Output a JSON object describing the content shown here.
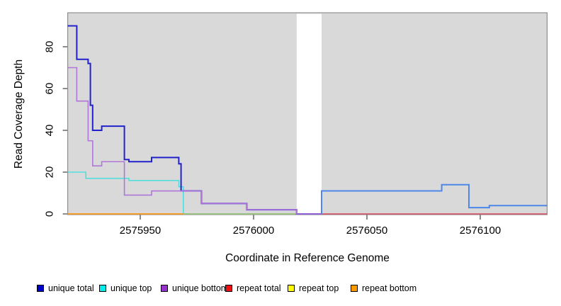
{
  "chart_data": {
    "type": "line",
    "title": "",
    "xlabel": "Coordinate in Reference Genome",
    "ylabel": "Read Coverage Depth",
    "xlim": [
      2575918,
      2576129.5
    ],
    "ylim": [
      0,
      96
    ],
    "x_ticks": [
      2575950,
      2576000,
      2576050,
      2576100
    ],
    "y_ticks": [
      0,
      20,
      40,
      60,
      80
    ],
    "grid": false,
    "panel_background": "#d9d9d9",
    "panel_border": "#8f8f8f",
    "gap_region": {
      "x_start": 2576019,
      "x_end": 2576030,
      "color": "#ffffff"
    },
    "series": [
      {
        "name": "repeat total (left of gap)",
        "legend": "repeat total",
        "color": "#dd4a63",
        "width": 1.4,
        "steps": [
          [
            2575918,
            0
          ],
          [
            2576019,
            0
          ]
        ]
      },
      {
        "name": "repeat total (right of gap)",
        "legend": "repeat total",
        "color": "#dd4a63",
        "width": 1.4,
        "steps": [
          [
            2576030,
            0
          ],
          [
            2576129.5,
            0
          ]
        ]
      },
      {
        "name": "repeat top",
        "legend": "repeat top",
        "color": "#e8e860",
        "width": 1.4,
        "steps": [
          [
            2575918,
            0
          ],
          [
            2576019,
            0
          ]
        ]
      },
      {
        "name": "unique top",
        "legend": "unique top",
        "color": "#55dede",
        "width": 1.6,
        "steps": [
          [
            2575918,
            20
          ],
          [
            2575926,
            17
          ],
          [
            2575945,
            16
          ],
          [
            2575967,
            13
          ],
          [
            2575969,
            0
          ]
        ]
      },
      {
        "name": "unique top + repeat top overlap at zero",
        "legend": "",
        "color": "#85c785",
        "width": 1.4,
        "steps": [
          [
            2575969,
            0
          ],
          [
            2576019,
            0
          ]
        ]
      },
      {
        "name": "repeat bottom",
        "legend": "repeat bottom",
        "color": "#ff9211",
        "width": 1.5,
        "steps": [
          [
            2575918,
            0
          ],
          [
            2575969,
            0
          ]
        ]
      },
      {
        "name": "unique total (left of gap)",
        "legend": "unique total",
        "color": "#2222cc",
        "width": 2,
        "steps": [
          [
            2575918,
            90
          ],
          [
            2575922,
            74
          ],
          [
            2575927,
            72
          ],
          [
            2575928,
            52
          ],
          [
            2575929,
            40
          ],
          [
            2575933,
            42
          ],
          [
            2575943,
            26
          ],
          [
            2575945,
            25
          ],
          [
            2575955,
            27
          ],
          [
            2575967,
            24
          ],
          [
            2575968,
            11
          ],
          [
            2575977,
            5
          ],
          [
            2575997,
            2
          ],
          [
            2576019,
            0
          ],
          [
            2576030,
            0
          ]
        ]
      },
      {
        "name": "unique bottom",
        "legend": "unique bottom",
        "color": "#b176d9",
        "width": 1.6,
        "steps": [
          [
            2575918,
            70
          ],
          [
            2575922,
            54
          ],
          [
            2575927,
            35
          ],
          [
            2575929,
            23
          ],
          [
            2575933,
            25
          ],
          [
            2575943,
            9
          ],
          [
            2575955,
            11
          ],
          [
            2575977,
            5
          ],
          [
            2575997,
            2
          ],
          [
            2576019,
            0
          ],
          [
            2576030,
            0
          ]
        ]
      },
      {
        "name": "unique total (right of gap)",
        "legend": "unique total",
        "color": "#4d88e8",
        "width": 2,
        "steps": [
          [
            2576030,
            0
          ],
          [
            2576030,
            11
          ],
          [
            2576083,
            14
          ],
          [
            2576095,
            3
          ],
          [
            2576104,
            4
          ],
          [
            2576129.5,
            4
          ]
        ]
      }
    ],
    "legend_position": "bottom",
    "legend": [
      {
        "label": "unique total",
        "color": "#0000cc"
      },
      {
        "label": "unique top",
        "color": "#00eeee"
      },
      {
        "label": "unique bottom",
        "color": "#9932cc"
      },
      {
        "label": "repeat total",
        "color": "#ee1111"
      },
      {
        "label": "repeat top",
        "color": "#ffff00"
      },
      {
        "label": "repeat bottom",
        "color": "#ff9900"
      }
    ]
  }
}
